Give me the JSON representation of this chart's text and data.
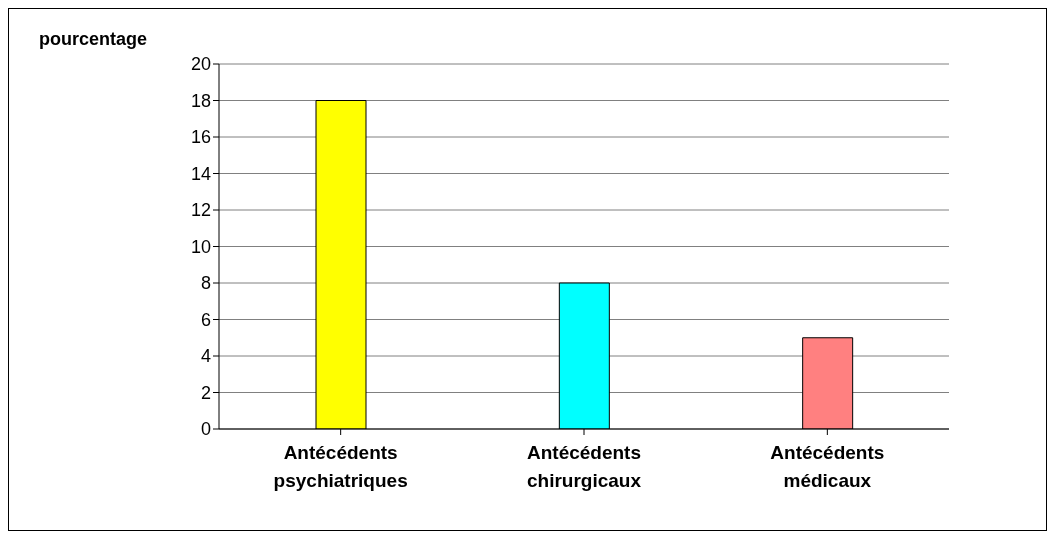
{
  "chart_data": {
    "type": "bar",
    "ylabel": "pourcentage",
    "categories": [
      "Antécédents psychiatriques",
      "Antécédents chirurgicaux",
      "Antécédents médicaux"
    ],
    "values": [
      18,
      8,
      5
    ],
    "colors": [
      "#ffff00",
      "#00ffff",
      "#ff8080"
    ],
    "ylim": [
      0,
      20
    ],
    "yticks": [
      0,
      2,
      4,
      6,
      8,
      10,
      12,
      14,
      16,
      18,
      20
    ],
    "grid": "y"
  }
}
